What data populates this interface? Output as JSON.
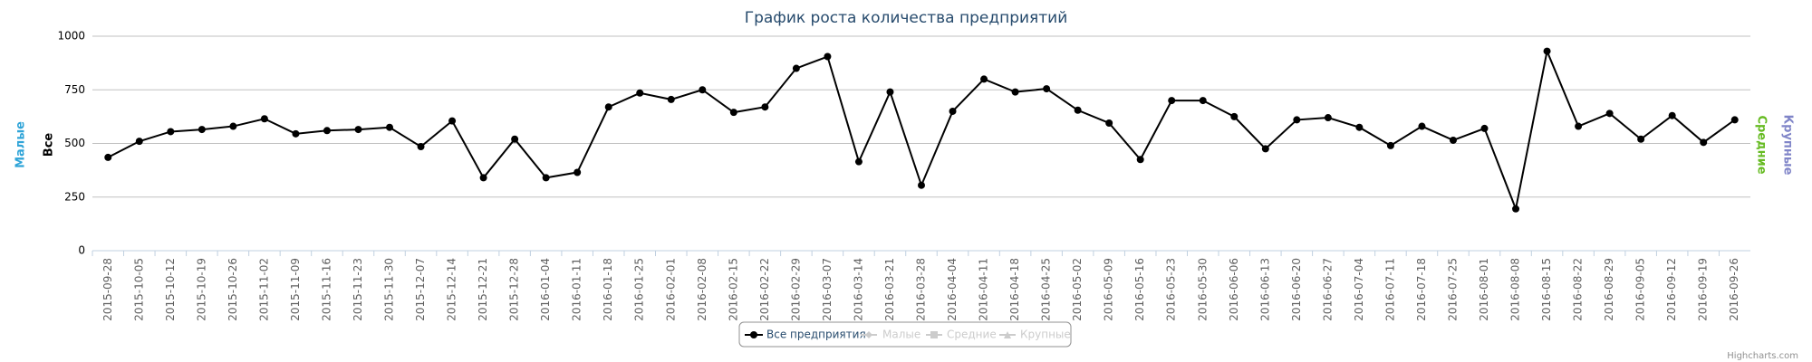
{
  "chart_data": {
    "type": "line",
    "title": "График роста количества предприятий",
    "categories": [
      "2015-09-28",
      "2015-10-05",
      "2015-10-12",
      "2015-10-19",
      "2015-10-26",
      "2015-11-02",
      "2015-11-09",
      "2015-11-16",
      "2015-11-23",
      "2015-11-30",
      "2015-12-07",
      "2015-12-14",
      "2015-12-21",
      "2015-12-28",
      "2016-01-04",
      "2016-01-11",
      "2016-01-18",
      "2016-01-25",
      "2016-02-01",
      "2016-02-08",
      "2016-02-15",
      "2016-02-22",
      "2016-02-29",
      "2016-03-07",
      "2016-03-14",
      "2016-03-21",
      "2016-03-28",
      "2016-04-04",
      "2016-04-11",
      "2016-04-18",
      "2016-04-25",
      "2016-05-02",
      "2016-05-09",
      "2016-05-16",
      "2016-05-23",
      "2016-05-30",
      "2016-06-06",
      "2016-06-13",
      "2016-06-20",
      "2016-06-27",
      "2016-07-04",
      "2016-07-11",
      "2016-07-18",
      "2016-07-25",
      "2016-08-01",
      "2016-08-08",
      "2016-08-15",
      "2016-08-22",
      "2016-08-29",
      "2016-09-05",
      "2016-09-12",
      "2016-09-19",
      "2016-09-26"
    ],
    "series": [
      {
        "name": "Все предприятия",
        "color": "#000000",
        "values": [
          435,
          510,
          555,
          565,
          580,
          615,
          545,
          560,
          565,
          575,
          485,
          605,
          340,
          520,
          340,
          365,
          670,
          735,
          705,
          750,
          645,
          670,
          850,
          905,
          415,
          740,
          305,
          650,
          800,
          740,
          755,
          655,
          595,
          425,
          700,
          700,
          625,
          475,
          610,
          620,
          575,
          490,
          580,
          515,
          570,
          195,
          930,
          580,
          640,
          520,
          630,
          505,
          610
        ]
      }
    ],
    "hidden_series": [
      "Малые",
      "Средние",
      "Крупные"
    ],
    "axis_titles": [
      {
        "text": "Малые",
        "color": "#2fa4d8"
      },
      {
        "text": "Все",
        "color": "#000000"
      },
      {
        "text": "Средние",
        "color": "#66bb22"
      },
      {
        "text": "Крупные",
        "color": "#8085c8"
      }
    ],
    "ylim": [
      0,
      1000
    ],
    "yticks": [
      0,
      250,
      500,
      750,
      1000
    ],
    "grid": true,
    "credit": "Highcharts.com"
  }
}
